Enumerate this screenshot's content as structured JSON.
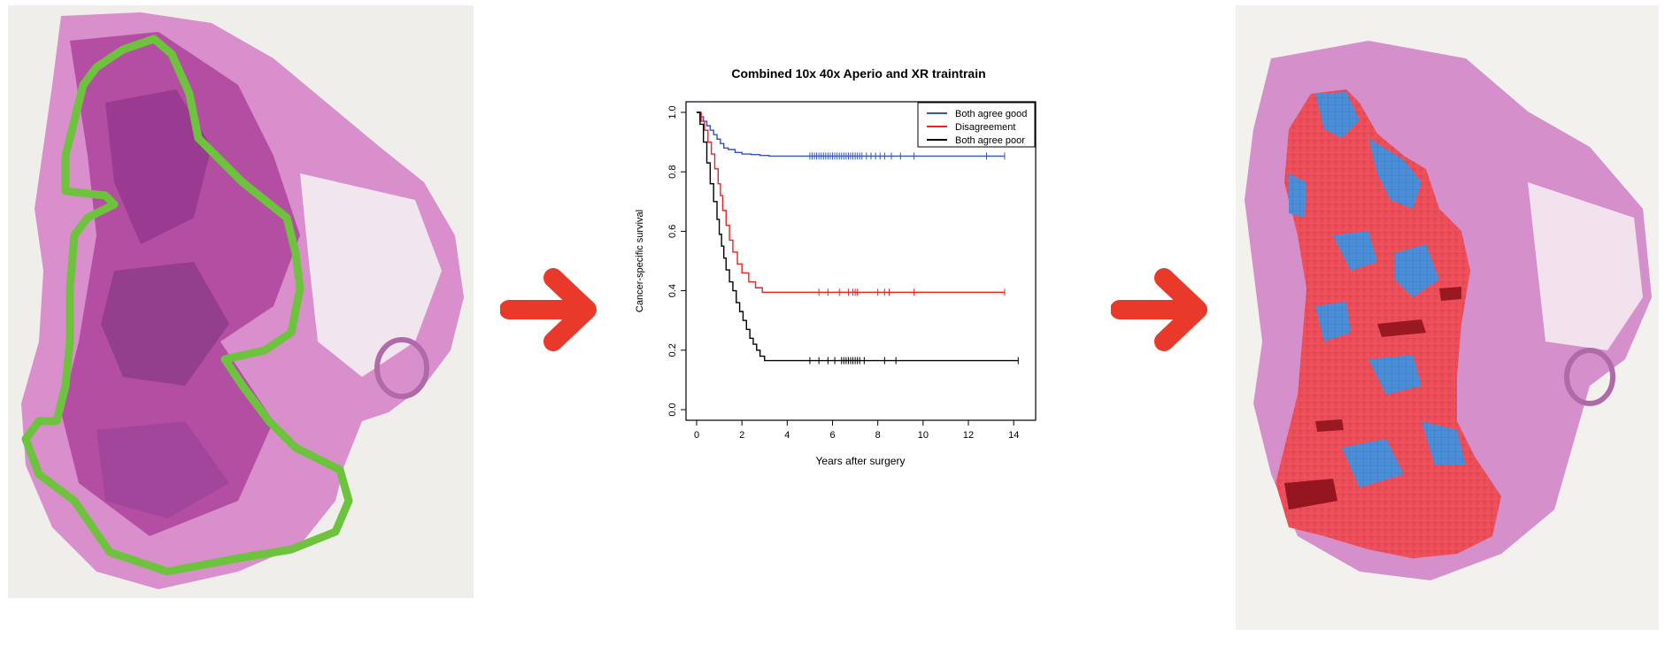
{
  "colors": {
    "arrow": "#e8392a",
    "tissue": "#c45aa8",
    "tissue_dark": "#8e2f86",
    "tissue_light": "#e6b8dc",
    "annotation_outline": "#6ec33e",
    "heatmap_red": "#f0505a",
    "heatmap_blue": "#4a8ed8",
    "heatmap_dark": "#8b0f1a",
    "slide_bg": "#efeeea"
  },
  "icons": {
    "arrow_1": "right-arrow-icon",
    "arrow_2": "right-arrow-icon"
  },
  "chart_data": {
    "type": "line",
    "title": "Combined 10x 40x Aperio and XR traintrain",
    "xlabel": "Years after surgery",
    "ylabel": "Cancer-specific survival",
    "xlim": [
      0,
      14.5
    ],
    "ylim": [
      0,
      1.0
    ],
    "xticks": [
      0,
      2,
      4,
      6,
      8,
      10,
      12,
      14
    ],
    "xtick_labels": [
      "0",
      "2",
      "4",
      "6",
      "8",
      "10",
      "12",
      "14"
    ],
    "yticks": [
      0,
      0.2,
      0.4,
      0.6,
      0.8,
      1.0
    ],
    "ytick_labels": [
      "0.0",
      "0.2",
      "0.4",
      "0.6",
      "0.8",
      "1.0"
    ],
    "legend_position": "top-right",
    "grid": false,
    "series": [
      {
        "name": "Both agree good",
        "color": "#3355bb",
        "step_x": [
          0,
          0.15,
          0.3,
          0.45,
          0.6,
          0.75,
          0.9,
          1.05,
          1.2,
          1.4,
          1.7,
          2.0,
          2.4,
          2.8,
          3.2,
          13.6
        ],
        "step_y": [
          1.0,
          0.985,
          0.97,
          0.955,
          0.94,
          0.925,
          0.91,
          0.895,
          0.88,
          0.875,
          0.865,
          0.86,
          0.858,
          0.855,
          0.853,
          0.853
        ],
        "censor_x": [
          5.0,
          5.1,
          5.2,
          5.3,
          5.4,
          5.5,
          5.6,
          5.7,
          5.8,
          5.9,
          6.0,
          6.1,
          6.2,
          6.3,
          6.4,
          6.5,
          6.6,
          6.7,
          6.8,
          6.9,
          7.0,
          7.1,
          7.2,
          7.3,
          7.5,
          7.7,
          7.9,
          8.1,
          8.3,
          8.6,
          9.0,
          9.6,
          12.8,
          13.6
        ]
      },
      {
        "name": "Disagreement",
        "color": "#ee2222",
        "step_x": [
          0,
          0.2,
          0.35,
          0.5,
          0.65,
          0.8,
          0.95,
          1.05,
          1.15,
          1.3,
          1.45,
          1.6,
          1.8,
          2.0,
          2.3,
          2.6,
          2.9,
          13.6
        ],
        "step_y": [
          1.0,
          0.97,
          0.94,
          0.9,
          0.86,
          0.81,
          0.76,
          0.72,
          0.67,
          0.62,
          0.57,
          0.53,
          0.49,
          0.46,
          0.43,
          0.41,
          0.395,
          0.395
        ],
        "censor_x": [
          5.4,
          5.8,
          6.3,
          6.7,
          6.9,
          7.0,
          7.1,
          8.0,
          8.3,
          8.5,
          9.6,
          13.6
        ]
      },
      {
        "name": "Both agree poor",
        "color": "#000000",
        "step_x": [
          0,
          0.15,
          0.3,
          0.45,
          0.6,
          0.75,
          0.9,
          1.0,
          1.1,
          1.2,
          1.3,
          1.45,
          1.6,
          1.75,
          1.9,
          2.05,
          2.2,
          2.35,
          2.5,
          2.65,
          2.8,
          3.0,
          14.2
        ],
        "step_y": [
          1.0,
          0.96,
          0.9,
          0.83,
          0.76,
          0.7,
          0.64,
          0.59,
          0.55,
          0.51,
          0.47,
          0.43,
          0.4,
          0.36,
          0.33,
          0.3,
          0.27,
          0.24,
          0.22,
          0.2,
          0.18,
          0.165,
          0.165
        ],
        "censor_x": [
          5.0,
          5.4,
          5.8,
          6.1,
          6.4,
          6.5,
          6.6,
          6.7,
          6.8,
          6.9,
          7.0,
          7.1,
          7.2,
          7.4,
          8.3,
          8.8,
          14.2
        ]
      }
    ]
  }
}
